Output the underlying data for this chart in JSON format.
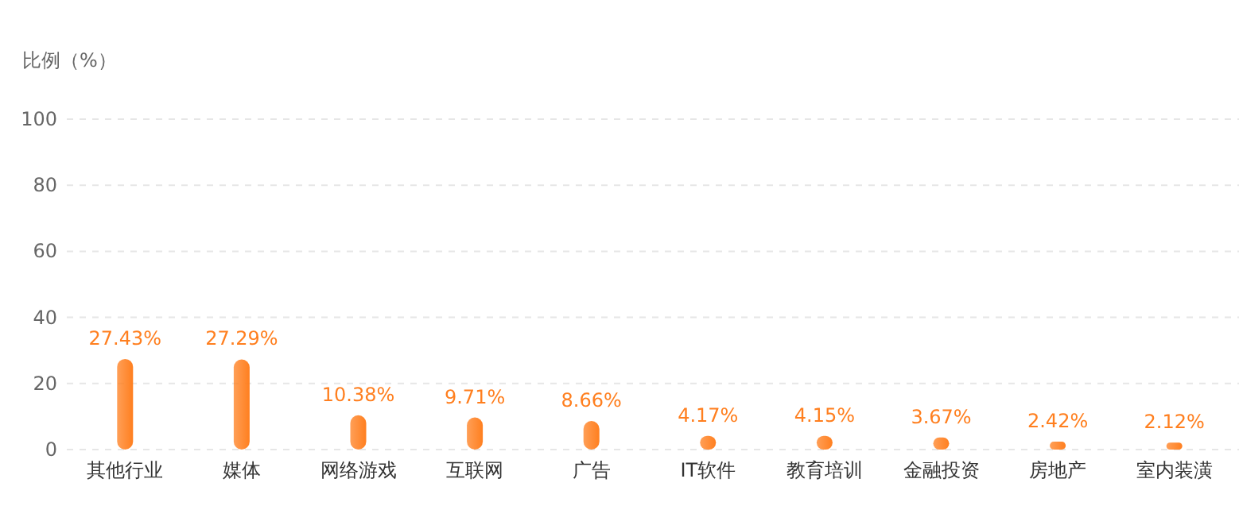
{
  "chart_data": {
    "type": "bar",
    "ylabel": "比例（%）",
    "categories": [
      "其他行业",
      "媒体",
      "网络游戏",
      "互联网",
      "广告",
      "IT软件",
      "教育培训",
      "金融投资",
      "房地产",
      "室内装潢"
    ],
    "values": [
      27.43,
      27.29,
      10.38,
      9.71,
      8.66,
      4.17,
      4.15,
      3.67,
      2.42,
      2.12
    ],
    "value_labels": [
      "27.43%",
      "27.29%",
      "10.38%",
      "9.71%",
      "8.66%",
      "4.17%",
      "4.15%",
      "3.67%",
      "2.42%",
      "2.12%"
    ],
    "color": "#ff7f1f",
    "ylim": [
      0,
      100
    ],
    "yticks": [
      0,
      20,
      40,
      60,
      80,
      100
    ],
    "grid": "y"
  }
}
